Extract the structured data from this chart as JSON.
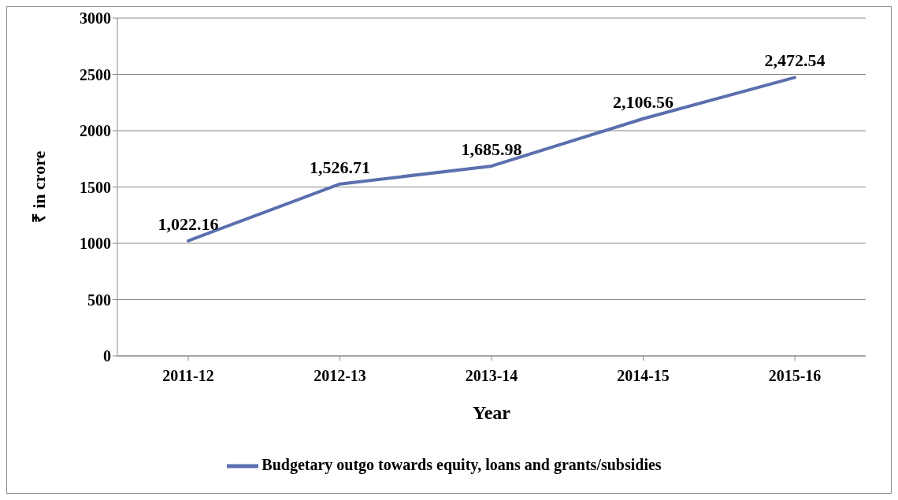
{
  "chart_data": {
    "type": "line",
    "xlabel": "Year",
    "ylabel": "₹ in crore",
    "categories": [
      "2011-12",
      "2012-13",
      "2013-14",
      "2014-15",
      "2015-16"
    ],
    "series": [
      {
        "name": "Budgetary outgo towards equity, loans and grants/subsidies",
        "color": "#5b6fae",
        "values": [
          1022.16,
          1526.71,
          1685.98,
          2106.56,
          2472.54
        ],
        "value_labels": [
          "1,022.16",
          "1,526.71",
          "1,685.98",
          "2,106.56",
          "2,472.54"
        ]
      }
    ],
    "ylim": [
      0,
      3000
    ],
    "yticks": [
      0,
      500,
      1000,
      1500,
      2000,
      2500,
      3000
    ],
    "grid": "y",
    "legend": "bottom",
    "marker": "none",
    "line_style": "solid"
  }
}
